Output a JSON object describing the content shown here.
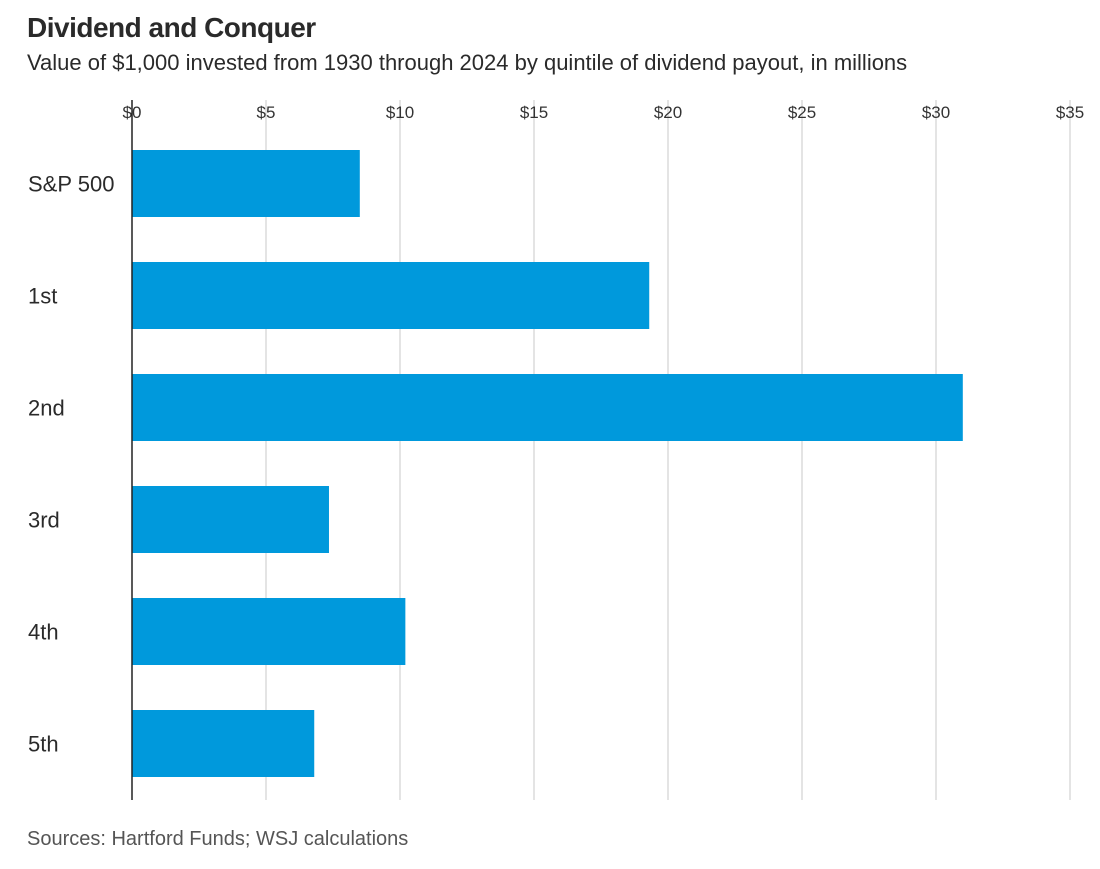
{
  "chart_data": {
    "type": "bar",
    "orientation": "horizontal",
    "title": "Dividend and Conquer",
    "subtitle": "Value of $1,000 invested from 1930 through 2024 by quintile of dividend payout, in millions",
    "categories": [
      "S&P 500",
      "1st",
      "2nd",
      "3rd",
      "4th",
      "5th"
    ],
    "values": [
      8.5,
      19.3,
      31.0,
      7.35,
      10.2,
      6.8
    ],
    "xlim": [
      0,
      35
    ],
    "xticks": [
      0,
      5,
      10,
      15,
      20,
      25,
      30,
      35
    ],
    "xtick_labels": [
      "$0",
      "$5",
      "$10",
      "$15",
      "$20",
      "$25",
      "$30",
      "$35"
    ],
    "xlabel": "",
    "ylabel": "",
    "grid": true,
    "axis_position": "top",
    "bar_color": "#0099dc",
    "source": "Sources: Hartford Funds; WSJ calculations"
  }
}
